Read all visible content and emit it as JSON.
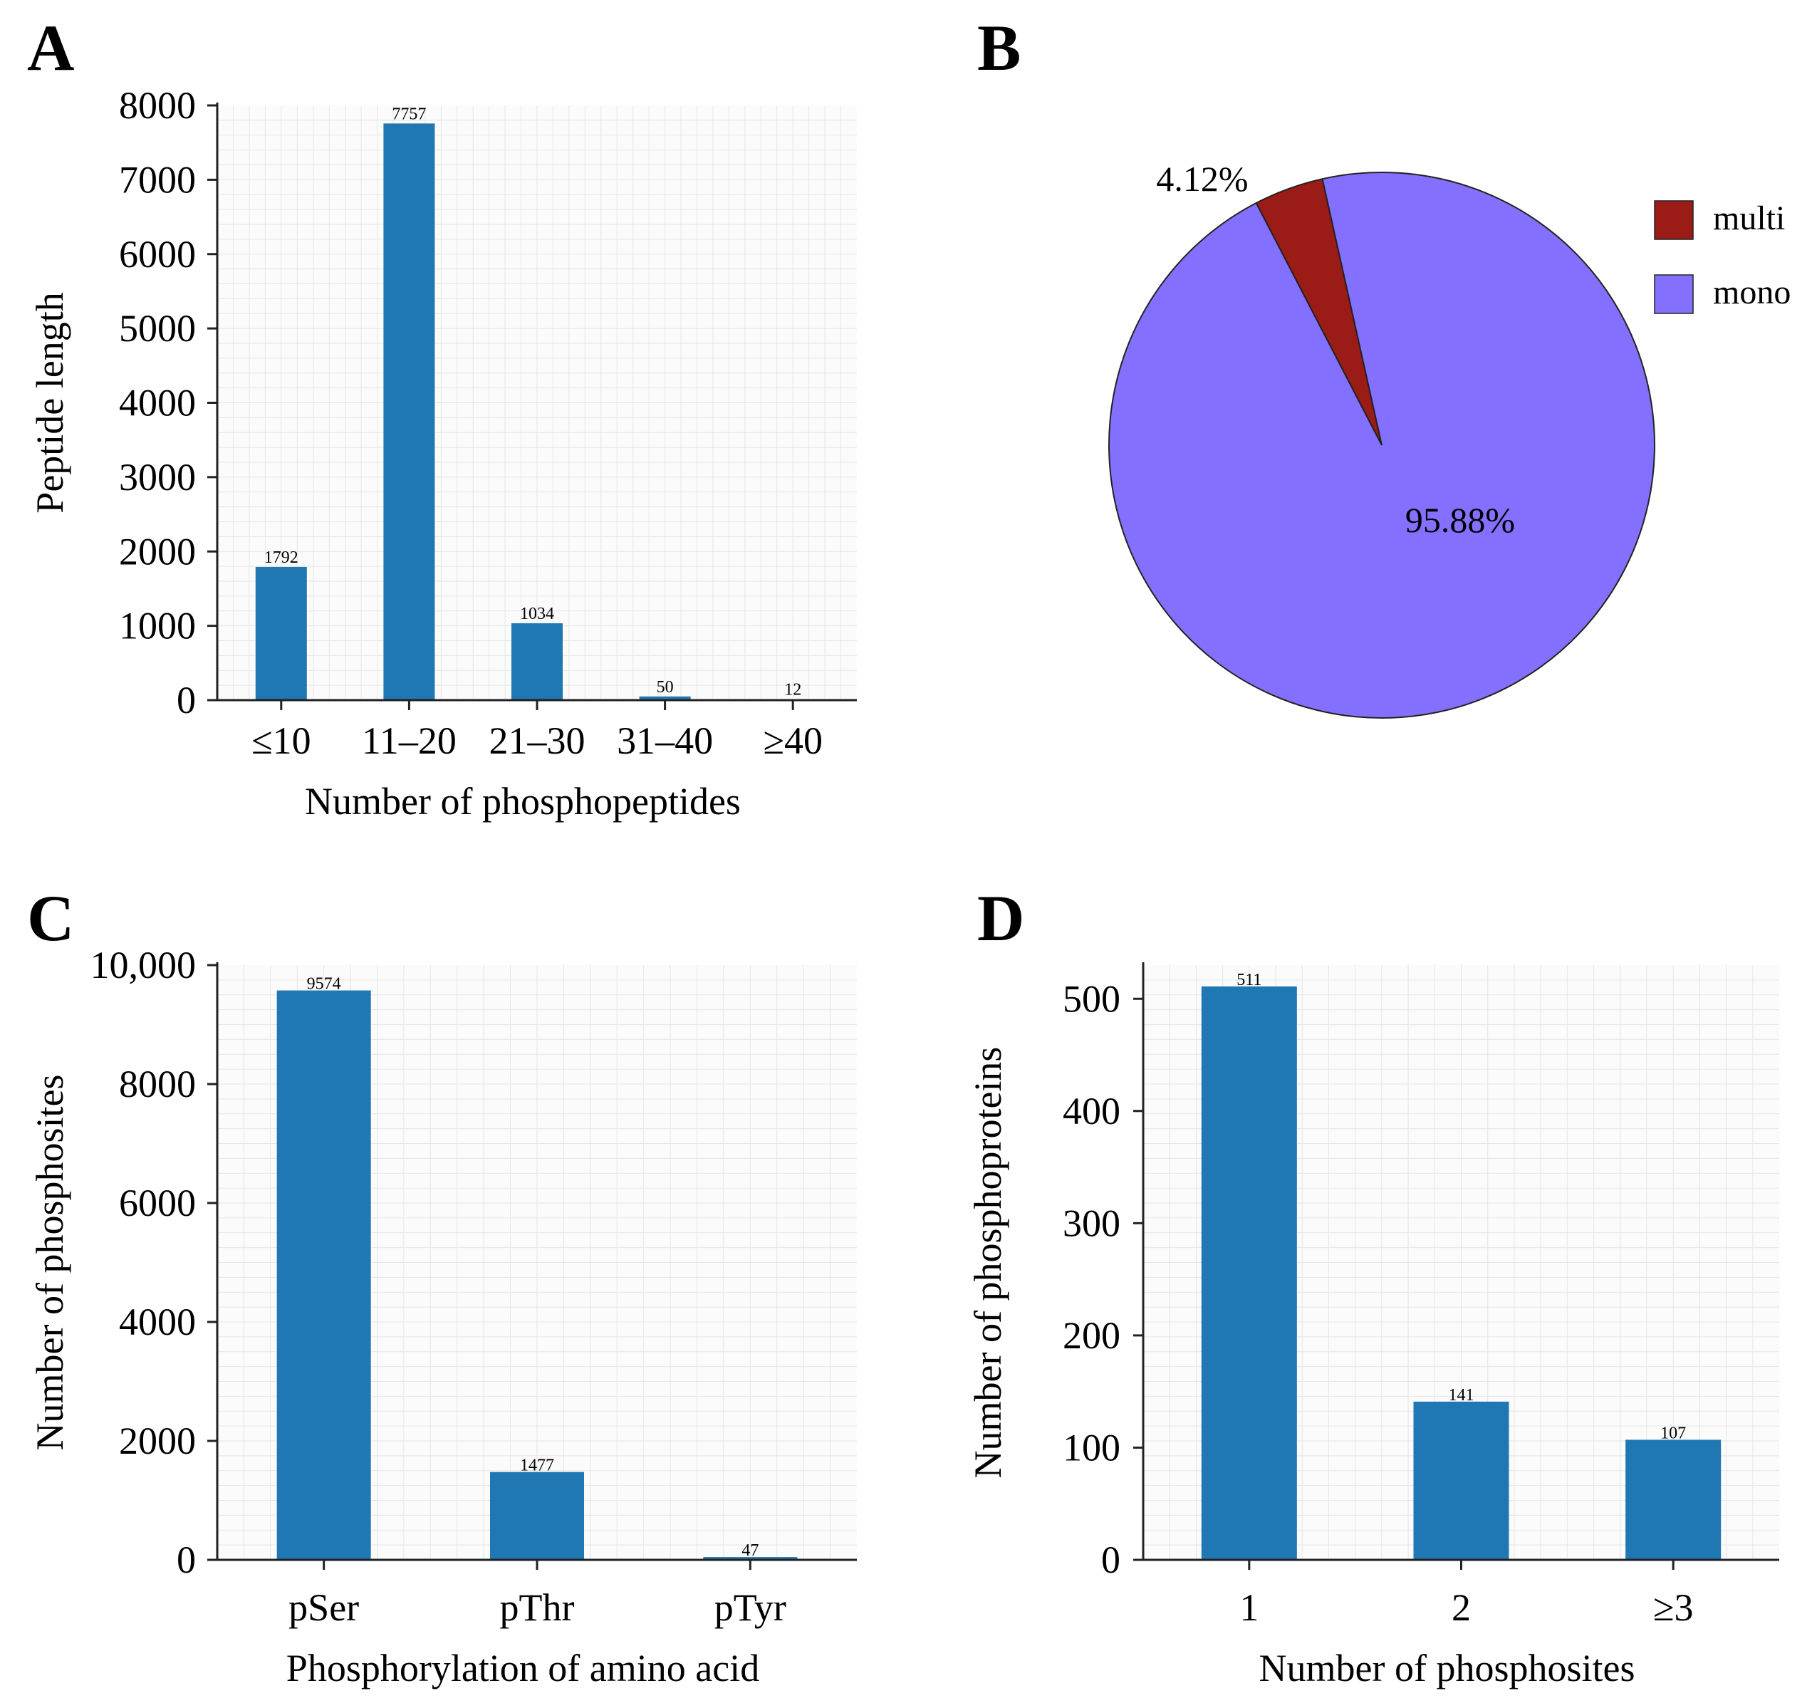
{
  "panels": {
    "A": {
      "letter": "A"
    },
    "B": {
      "letter": "B"
    },
    "C": {
      "letter": "C"
    },
    "D": {
      "letter": "D"
    }
  },
  "colors": {
    "bar": "#1f77b4",
    "multi": "#9b1b17",
    "mono": "#8470ff",
    "grid": "#e6e6e6"
  },
  "chart_data": [
    {
      "id": "A",
      "type": "bar",
      "categories": [
        "≤10",
        "11–20",
        "21–30",
        "31–40",
        "≥40"
      ],
      "values": [
        1792,
        7757,
        1034,
        50,
        12
      ],
      "data_labels": [
        "1792",
        "7757",
        "1034",
        "50",
        "12"
      ],
      "ylim": [
        0,
        8000
      ],
      "yticks": [
        0,
        1000,
        2000,
        3000,
        4000,
        5000,
        6000,
        7000,
        8000
      ],
      "ytick_labels": [
        "0",
        "1000",
        "2000",
        "3000",
        "4000",
        "5000",
        "6000",
        "7000",
        "8000"
      ],
      "xlabel": "Number of phosphopeptides",
      "ylabel": "Peptide length",
      "grid": true
    },
    {
      "id": "B",
      "type": "pie",
      "labels": [
        "multi",
        "mono"
      ],
      "values": [
        4.12,
        95.88
      ],
      "value_labels": [
        "4.12%",
        "95.88%"
      ],
      "legend": "top-right"
    },
    {
      "id": "C",
      "type": "bar",
      "categories": [
        "pSer",
        "pThr",
        "pTyr"
      ],
      "values": [
        9574,
        1477,
        47
      ],
      "data_labels": [
        "9574",
        "1477",
        "47"
      ],
      "ylim": [
        0,
        10000
      ],
      "yticks": [
        0,
        2000,
        4000,
        6000,
        8000,
        10000
      ],
      "ytick_labels": [
        "0",
        "2000",
        "4000",
        "6000",
        "8000",
        "10,000"
      ],
      "xlabel": "Phosphorylation of amino acid",
      "ylabel": "Number of phosphosites",
      "grid": true
    },
    {
      "id": "D",
      "type": "bar",
      "categories": [
        "1",
        "2",
        "≥3"
      ],
      "values": [
        511,
        141,
        107
      ],
      "data_labels": [
        "511",
        "141",
        "107"
      ],
      "ylim": [
        0,
        530
      ],
      "yticks": [
        0,
        100,
        200,
        300,
        400,
        500
      ],
      "ytick_labels": [
        "0",
        "100",
        "200",
        "300",
        "400",
        "500"
      ],
      "xlabel": "Number of phosphosites",
      "ylabel": "Number of phosphoproteins",
      "grid": true
    }
  ]
}
